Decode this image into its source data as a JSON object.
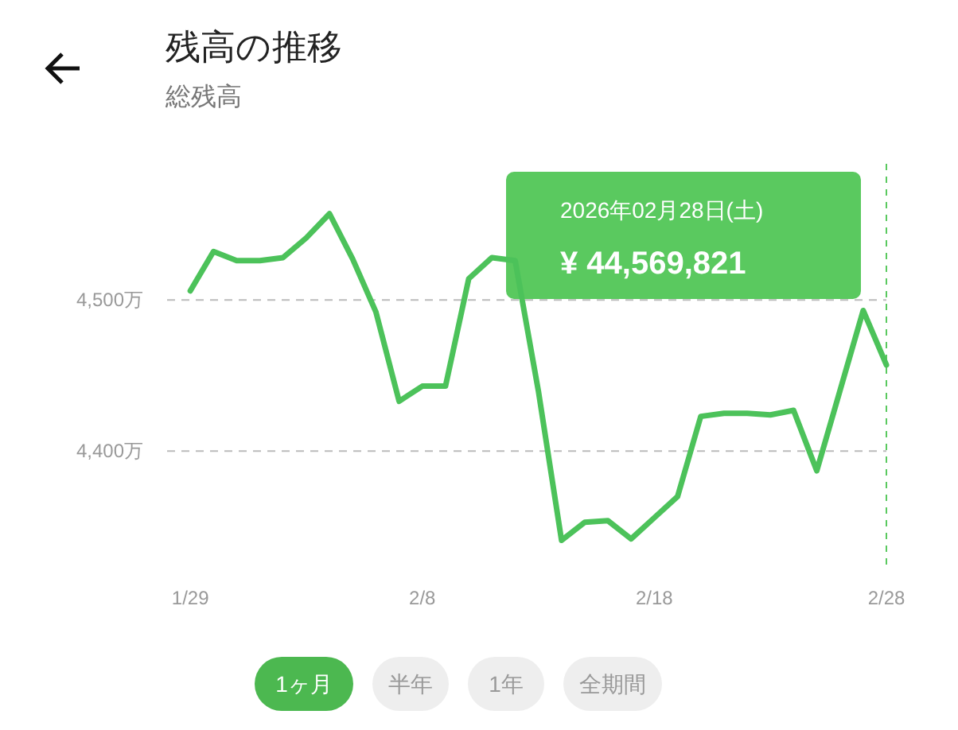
{
  "chart_data": {
    "type": "line",
    "title": "残高の推移",
    "subtitle": "総残高",
    "x": [
      "2026-01-29",
      "2026-01-30",
      "2026-01-31",
      "2026-02-01",
      "2026-02-02",
      "2026-02-03",
      "2026-02-04",
      "2026-02-05",
      "2026-02-06",
      "2026-02-07",
      "2026-02-08",
      "2026-02-09",
      "2026-02-10",
      "2026-02-11",
      "2026-02-12",
      "2026-02-13",
      "2026-02-14",
      "2026-02-15",
      "2026-02-16",
      "2026-02-17",
      "2026-02-18",
      "2026-02-19",
      "2026-02-20",
      "2026-02-21",
      "2026-02-22",
      "2026-02-23",
      "2026-02-24",
      "2026-02-25",
      "2026-02-26",
      "2026-02-27",
      "2026-02-28"
    ],
    "series": [
      {
        "color": "#4cc25a",
        "values": [
          4506,
          4532,
          4526,
          4526,
          4528,
          4541,
          4557,
          4527,
          4492,
          4433,
          4443,
          4443,
          4514,
          4528,
          4526,
          4440,
          4341,
          4353,
          4354,
          4342,
          4356,
          4370,
          4423,
          4425,
          4425,
          4424,
          4427,
          4387,
          4440,
          4493,
          4457
        ]
      }
    ],
    "xlim": [
      "2026-01-28",
      "2026-02-28"
    ],
    "xticks": [
      {
        "value": "2026-01-29",
        "label": "1/29"
      },
      {
        "value": "2026-02-08",
        "label": "2/8"
      },
      {
        "value": "2026-02-18",
        "label": "2/18"
      },
      {
        "value": "2026-02-28",
        "label": "2/28"
      }
    ],
    "ylim": [
      4325,
      4590
    ],
    "yticks": [
      {
        "value": 4400,
        "label": "4,400万"
      },
      {
        "value": 4500,
        "label": "4,500万"
      }
    ],
    "grid": "y",
    "marker": "none",
    "line_style": "solid",
    "ref_lines": [
      {
        "axis": "x",
        "value": "2026-02-28",
        "color": "#5ac95f",
        "line_style": "dashed"
      }
    ],
    "annotations": [
      "2026年02月28日(土)",
      "¥ 44,569,821",
      "1ヶ月",
      "半年",
      "1年",
      "全期間"
    ]
  }
}
